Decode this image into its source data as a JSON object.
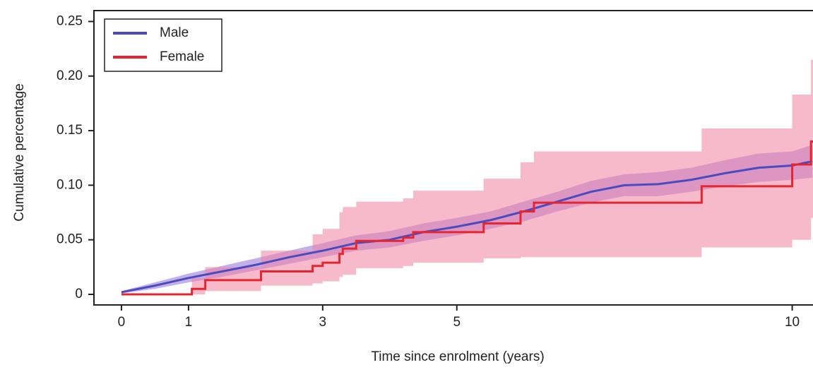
{
  "chart_data": {
    "type": "line",
    "xlabel": "Time since enrolment (years)",
    "ylabel": "Cumulative percentage",
    "xlim": [
      -0.41,
      10.31
    ],
    "ylim": [
      -0.0097,
      0.26
    ],
    "xticks": [
      0,
      1,
      3,
      5,
      10
    ],
    "yticks": [
      0,
      0.05,
      {
        "value": 0.1,
        "label": "0.10"
      },
      0.15,
      {
        "value": 0.2,
        "label": "0.20"
      },
      0.25
    ],
    "legend": "upper left",
    "series": [
      {
        "name": "Male",
        "color": "#4b4bc0",
        "band_color": "rgba(125,80,205,0.45)",
        "drawstyle": "linear",
        "x": [
          0,
          0.5,
          1,
          1.5,
          2,
          2.5,
          3,
          3.5,
          4,
          4.5,
          5,
          5.5,
          6,
          6.5,
          7,
          7.5,
          8,
          8.5,
          9,
          9.5,
          10,
          10.3
        ],
        "values": [
          0.002,
          0.008,
          0.015,
          0.021,
          0.027,
          0.034,
          0.04,
          0.047,
          0.05,
          0.057,
          0.062,
          0.068,
          0.076,
          0.085,
          0.094,
          0.1,
          0.101,
          0.105,
          0.111,
          0.116,
          0.118,
          0.122
        ],
        "lower": [
          0.001,
          0.005,
          0.011,
          0.016,
          0.022,
          0.028,
          0.034,
          0.04,
          0.043,
          0.049,
          0.054,
          0.06,
          0.067,
          0.076,
          0.084,
          0.09,
          0.09,
          0.094,
          0.099,
          0.103,
          0.105,
          0.107
        ],
        "upper": [
          0.003,
          0.011,
          0.019,
          0.026,
          0.033,
          0.04,
          0.047,
          0.054,
          0.058,
          0.065,
          0.07,
          0.076,
          0.085,
          0.094,
          0.104,
          0.11,
          0.112,
          0.116,
          0.123,
          0.129,
          0.131,
          0.137
        ]
      },
      {
        "name": "Female",
        "color": "#e8242e",
        "band_color": "rgba(240,130,160,0.55)",
        "drawstyle": "steps-post",
        "x": [
          0,
          1.05,
          1.25,
          2.08,
          2.85,
          3.0,
          3.25,
          3.3,
          3.5,
          4.2,
          4.35,
          5.4,
          5.95,
          6.15,
          8.65,
          10.0,
          10.28,
          10.31
        ],
        "values": [
          0,
          0.005,
          0.013,
          0.021,
          0.026,
          0.029,
          0.037,
          0.042,
          0.049,
          0.052,
          0.057,
          0.065,
          0.076,
          0.084,
          0.099,
          0.119,
          0.14,
          0.14
        ],
        "lower": [
          0,
          0,
          0.003,
          0.008,
          0.01,
          0.012,
          0.016,
          0.018,
          0.024,
          0.026,
          0.029,
          0.033,
          0.034,
          0.034,
          0.043,
          0.05,
          0.07,
          0.07
        ],
        "upper": [
          0,
          0.015,
          0.025,
          0.04,
          0.055,
          0.06,
          0.075,
          0.08,
          0.085,
          0.088,
          0.095,
          0.106,
          0.121,
          0.131,
          0.152,
          0.183,
          0.215,
          0.215
        ]
      }
    ]
  }
}
